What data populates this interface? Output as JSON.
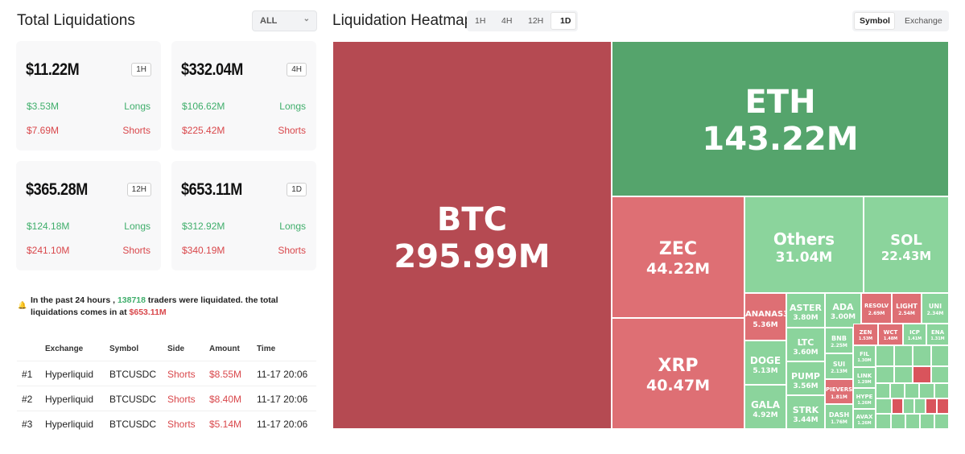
{
  "left": {
    "title": "Total Liquidations",
    "filter": "ALL",
    "cards": [
      {
        "amount": "$11.22M",
        "timeframe": "1H",
        "longs_value": "$3.53M",
        "longs_label": "Longs",
        "shorts_value": "$7.69M",
        "shorts_label": "Shorts"
      },
      {
        "amount": "$332.04M",
        "timeframe": "4H",
        "longs_value": "$106.62M",
        "longs_label": "Longs",
        "shorts_value": "$225.42M",
        "shorts_label": "Shorts"
      },
      {
        "amount": "$365.28M",
        "timeframe": "12H",
        "longs_value": "$124.18M",
        "longs_label": "Longs",
        "shorts_value": "$241.10M",
        "shorts_label": "Shorts"
      },
      {
        "amount": "$653.11M",
        "timeframe": "1D",
        "longs_value": "$312.92M",
        "longs_label": "Longs",
        "shorts_value": "$340.19M",
        "shorts_label": "Shorts"
      }
    ],
    "summary": {
      "prefix": "In the past 24 hours ,",
      "traders": "138718",
      "middle": "traders were liquidated. the total liquidations comes in at",
      "total": "$653.11M"
    },
    "table": {
      "headers": [
        "Exchange",
        "Symbol",
        "Side",
        "Amount",
        "Time"
      ],
      "rows": [
        {
          "rank": "#1",
          "exchange": "Hyperliquid",
          "symbol": "BTCUSDC",
          "side": "Shorts",
          "amount": "$8.55M",
          "time": "11-17 20:06"
        },
        {
          "rank": "#2",
          "exchange": "Hyperliquid",
          "symbol": "BTCUSDC",
          "side": "Shorts",
          "amount": "$8.40M",
          "time": "11-17 20:06"
        },
        {
          "rank": "#3",
          "exchange": "Hyperliquid",
          "symbol": "BTCUSDC",
          "side": "Shorts",
          "amount": "$5.14M",
          "time": "11-17 20:06"
        }
      ]
    }
  },
  "right": {
    "title": "Liquidation Heatmap",
    "timeframes": [
      "1H",
      "4H",
      "12H",
      "1D"
    ],
    "active_timeframe": "1D",
    "group_by": [
      "Symbol",
      "Exchange"
    ],
    "active_group": "Symbol",
    "tiles": [
      {
        "name": "BTC",
        "value": "295.99M"
      },
      {
        "name": "ETH",
        "value": "143.22M"
      },
      {
        "name": "ZEC",
        "value": "44.22M"
      },
      {
        "name": "XRP",
        "value": "40.47M"
      },
      {
        "name": "Others",
        "value": "31.04M"
      },
      {
        "name": "SOL",
        "value": "22.43M"
      },
      {
        "name": "ANANAS3",
        "value": "5.36M"
      },
      {
        "name": "DOGE",
        "value": "5.13M"
      },
      {
        "name": "GALA",
        "value": "4.92M"
      },
      {
        "name": "ASTER",
        "value": "3.80M"
      },
      {
        "name": "LTC",
        "value": "3.60M"
      },
      {
        "name": "PUMP",
        "value": "3.56M"
      },
      {
        "name": "STRK",
        "value": "3.44M"
      },
      {
        "name": "ADA",
        "value": "3.00M"
      },
      {
        "name": "BNB",
        "value": "2.25M"
      },
      {
        "name": "SUI",
        "value": "2.13M"
      },
      {
        "name": "PIEVERSE",
        "value": "1.81M"
      },
      {
        "name": "DASH",
        "value": "1.76M"
      },
      {
        "name": "RESOLV",
        "value": "2.69M"
      },
      {
        "name": "LIGHT",
        "value": "2.54M"
      },
      {
        "name": "UNI",
        "value": "2.34M"
      },
      {
        "name": "ZEN",
        "value": "1.53M"
      },
      {
        "name": "WCT",
        "value": "1.48M"
      },
      {
        "name": "ICP",
        "value": "1.41M"
      },
      {
        "name": "ENA",
        "value": "1.31M"
      },
      {
        "name": "FIL",
        "value": "1.30M"
      },
      {
        "name": "LINK",
        "value": "1.29M"
      },
      {
        "name": "HYPE",
        "value": "1.26M"
      },
      {
        "name": "AVAX",
        "value": "1.26M"
      }
    ]
  }
}
